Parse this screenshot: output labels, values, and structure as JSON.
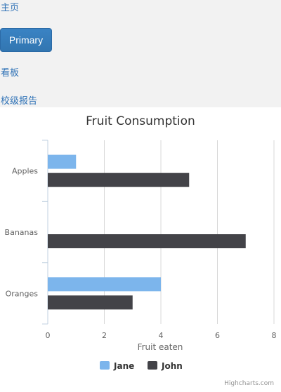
{
  "nav": {
    "home_label": "主页",
    "primary_label": "Primary",
    "board_label": "看板",
    "report_label": "校级报告"
  },
  "chart_data": {
    "type": "bar",
    "orientation": "horizontal",
    "title": "Fruit Consumption",
    "xlabel": "",
    "ylabel": "Fruit eaten",
    "categories": [
      "Apples",
      "Bananas",
      "Oranges"
    ],
    "series": [
      {
        "name": "Jane",
        "values": [
          1,
          0,
          4
        ],
        "color": "#7cb5ec"
      },
      {
        "name": "John",
        "values": [
          5,
          7,
          3
        ],
        "color": "#434348"
      }
    ],
    "ylim": [
      0,
      8
    ],
    "yticks": [
      0,
      2,
      4,
      6,
      8
    ],
    "grid": true,
    "legend": "bottom-center",
    "credits": "Highcharts.com"
  }
}
